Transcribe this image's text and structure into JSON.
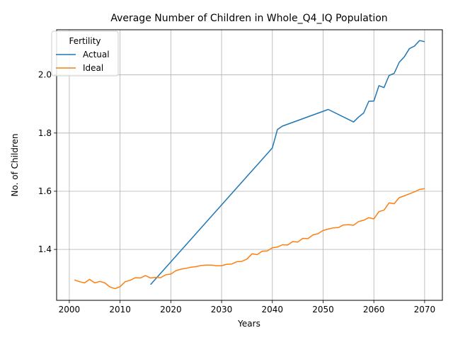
{
  "chart_data": {
    "type": "line",
    "title": "Average Number of Children in Whole_Q4_IQ Population",
    "xlabel": "Years",
    "ylabel": "No. of Children",
    "xlim": [
      1997.5,
      2073.5
    ],
    "ylim": [
      1.225,
      2.155
    ],
    "xticks": [
      2000,
      2010,
      2020,
      2030,
      2040,
      2050,
      2060,
      2070
    ],
    "yticks": [
      1.4,
      1.6,
      1.8,
      2.0
    ],
    "xtick_labels": [
      "2000",
      "2010",
      "2020",
      "2030",
      "2040",
      "2050",
      "2060",
      "2070"
    ],
    "ytick_labels": [
      "1.4",
      "1.6",
      "1.8",
      "2.0"
    ],
    "grid": true,
    "legend": {
      "title": "Fertility",
      "placement": "top-left"
    },
    "series": [
      {
        "name": "Actual",
        "color": "#1f77b4",
        "x": [
          2016,
          2040,
          2041,
          2042,
          2051,
          2056,
          2057,
          2058,
          2059,
          2060,
          2061,
          2062,
          2063,
          2064,
          2065,
          2066,
          2067,
          2068,
          2069,
          2070
        ],
        "y": [
          1.279,
          1.749,
          1.812,
          1.824,
          1.881,
          1.838,
          1.855,
          1.869,
          1.909,
          1.91,
          1.963,
          1.956,
          1.998,
          2.005,
          2.043,
          2.062,
          2.09,
          2.099,
          2.118,
          2.114
        ]
      },
      {
        "name": "Ideal",
        "color": "#ff7f0e",
        "x": [
          2001,
          2002,
          2003,
          2004,
          2005,
          2006,
          2007,
          2008,
          2009,
          2010,
          2011,
          2012,
          2013,
          2014,
          2015,
          2016,
          2017,
          2018,
          2019,
          2020,
          2021,
          2022,
          2023,
          2024,
          2025,
          2026,
          2027,
          2028,
          2029,
          2030,
          2031,
          2032,
          2033,
          2034,
          2035,
          2036,
          2037,
          2038,
          2039,
          2040,
          2041,
          2042,
          2043,
          2044,
          2045,
          2046,
          2047,
          2048,
          2049,
          2050,
          2051,
          2052,
          2053,
          2054,
          2055,
          2056,
          2057,
          2058,
          2059,
          2060,
          2061,
          2062,
          2063,
          2064,
          2065,
          2066,
          2067,
          2068,
          2069,
          2070
        ],
        "y": [
          1.295,
          1.289,
          1.285,
          1.297,
          1.285,
          1.29,
          1.285,
          1.271,
          1.265,
          1.272,
          1.289,
          1.294,
          1.303,
          1.302,
          1.31,
          1.302,
          1.304,
          1.303,
          1.313,
          1.315,
          1.327,
          1.332,
          1.335,
          1.339,
          1.341,
          1.345,
          1.346,
          1.346,
          1.344,
          1.344,
          1.349,
          1.35,
          1.358,
          1.359,
          1.367,
          1.385,
          1.382,
          1.394,
          1.395,
          1.406,
          1.408,
          1.416,
          1.415,
          1.427,
          1.425,
          1.438,
          1.437,
          1.45,
          1.454,
          1.465,
          1.47,
          1.474,
          1.475,
          1.484,
          1.485,
          1.483,
          1.496,
          1.5,
          1.509,
          1.505,
          1.53,
          1.535,
          1.56,
          1.557,
          1.578,
          1.584,
          1.591,
          1.598,
          1.606,
          1.609
        ]
      }
    ]
  }
}
